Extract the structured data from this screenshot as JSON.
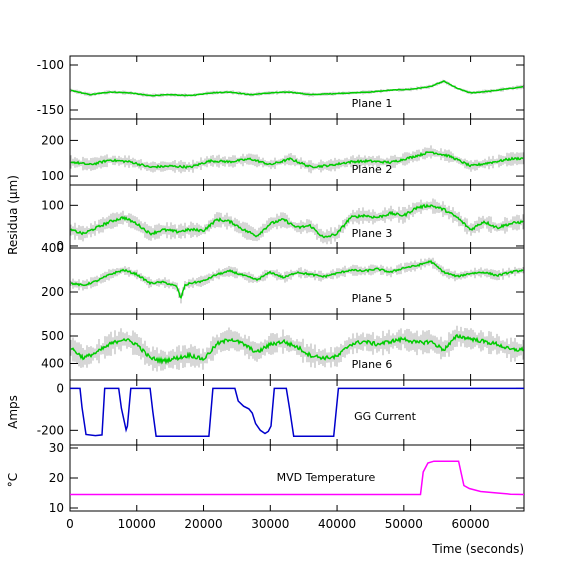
{
  "figure": {
    "ylabel_residua": "Residua (µm)",
    "ylabel_amps": "Amps",
    "ylabel_temp": "°C",
    "xlabel": "Time (seconds)"
  },
  "chart_data": [
    {
      "type": "line",
      "label": "Plane 1",
      "color": "#00cc00",
      "xlim": [
        0,
        68000
      ],
      "ylim": [
        -160,
        -90
      ],
      "yticks": [
        -100,
        -150
      ],
      "x": [
        0,
        3000,
        6000,
        9000,
        12000,
        15000,
        18000,
        21000,
        24000,
        27000,
        30000,
        33000,
        36000,
        39000,
        42000,
        45000,
        48000,
        51000,
        54000,
        56000,
        58000,
        60000,
        63000,
        66000,
        68000
      ],
      "values": [
        -128,
        -133,
        -130,
        -131,
        -134,
        -133,
        -134,
        -131,
        -130,
        -133,
        -131,
        -130,
        -133,
        -132,
        -131,
        -130,
        -128,
        -127,
        -124,
        -118,
        -126,
        -131,
        -129,
        -126,
        -124
      ]
    },
    {
      "type": "line",
      "label": "Plane 2",
      "color": "#00cc00",
      "xlim": [
        0,
        68000
      ],
      "ylim": [
        75,
        260
      ],
      "yticks": [
        100,
        200
      ],
      "x": [
        0,
        3000,
        6000,
        9000,
        12000,
        15000,
        18000,
        21000,
        24000,
        27000,
        30000,
        33000,
        36000,
        39000,
        42000,
        45000,
        48000,
        51000,
        54000,
        57000,
        60000,
        63000,
        66000,
        68000
      ],
      "values": [
        140,
        132,
        145,
        140,
        125,
        128,
        125,
        143,
        140,
        148,
        132,
        148,
        126,
        130,
        140,
        142,
        138,
        152,
        168,
        155,
        128,
        138,
        148,
        150
      ]
    },
    {
      "type": "line",
      "label": "Plane 3",
      "color": "#00cc00",
      "xlim": [
        0,
        68000
      ],
      "ylim": [
        -5,
        150
      ],
      "yticks": [
        0,
        100
      ],
      "x": [
        0,
        2000,
        4000,
        6000,
        8000,
        10000,
        12000,
        14000,
        16000,
        18000,
        20000,
        22000,
        24000,
        26000,
        28000,
        30000,
        32000,
        34000,
        36000,
        38000,
        40000,
        42000,
        44000,
        46000,
        48000,
        50000,
        52000,
        54000,
        56000,
        58000,
        60000,
        62000,
        64000,
        66000,
        68000
      ],
      "values": [
        40,
        30,
        45,
        60,
        70,
        55,
        30,
        40,
        35,
        40,
        38,
        65,
        60,
        40,
        25,
        55,
        65,
        45,
        50,
        20,
        30,
        70,
        75,
        70,
        80,
        75,
        95,
        100,
        90,
        70,
        40,
        60,
        45,
        55,
        60
      ]
    },
    {
      "type": "line",
      "label": "Plane 5",
      "color": "#00cc00",
      "xlim": [
        0,
        68000
      ],
      "ylim": [
        100,
        400
      ],
      "yticks": [
        200,
        400
      ],
      "x": [
        0,
        2000,
        4000,
        6000,
        8000,
        10000,
        12000,
        14000,
        16000,
        16600,
        17200,
        18000,
        20000,
        22000,
        24000,
        26000,
        28000,
        30000,
        32000,
        34000,
        36000,
        38000,
        40000,
        42000,
        44000,
        46000,
        48000,
        50000,
        52000,
        54000,
        56000,
        58000,
        60000,
        62000,
        64000,
        66000,
        68000
      ],
      "values": [
        240,
        230,
        250,
        280,
        300,
        280,
        240,
        245,
        225,
        170,
        230,
        240,
        250,
        280,
        295,
        275,
        255,
        290,
        265,
        290,
        280,
        270,
        285,
        300,
        295,
        305,
        290,
        310,
        320,
        340,
        290,
        270,
        285,
        290,
        275,
        290,
        300
      ]
    },
    {
      "type": "line",
      "label": "Plane 6",
      "color": "#00cc00",
      "xlim": [
        0,
        68000
      ],
      "ylim": [
        340,
        580
      ],
      "yticks": [
        400,
        500
      ],
      "x": [
        0,
        2000,
        4000,
        6000,
        8000,
        10000,
        12000,
        14000,
        16000,
        18000,
        20000,
        22000,
        24000,
        26000,
        28000,
        30000,
        32000,
        34000,
        36000,
        38000,
        40000,
        42000,
        44000,
        46000,
        48000,
        50000,
        52000,
        54000,
        56000,
        58000,
        60000,
        62000,
        64000,
        66000,
        68000
      ],
      "values": [
        460,
        420,
        440,
        470,
        490,
        470,
        420,
        410,
        420,
        430,
        415,
        470,
        490,
        470,
        440,
        470,
        480,
        460,
        430,
        420,
        425,
        470,
        480,
        470,
        480,
        490,
        475,
        480,
        450,
        500,
        490,
        480,
        470,
        450,
        450
      ]
    },
    {
      "type": "line",
      "label": "GG Current",
      "color": "#0000cc",
      "xlim": [
        0,
        68000
      ],
      "ylim": [
        -270,
        40
      ],
      "yticks": [
        0,
        -200
      ],
      "x": [
        0,
        1500,
        1800,
        2400,
        3800,
        4800,
        5200,
        7300,
        7700,
        8400,
        8600,
        9100,
        10000,
        12000,
        12400,
        12900,
        20800,
        21400,
        24700,
        25200,
        26000,
        26800,
        27300,
        27800,
        28500,
        29200,
        29700,
        30100,
        30600,
        32400,
        32900,
        33500,
        39500,
        40200,
        68000
      ],
      "values": [
        0,
        0,
        -90,
        -220,
        -225,
        -222,
        0,
        0,
        -95,
        -198,
        -180,
        0,
        0,
        0,
        -110,
        -228,
        -228,
        0,
        0,
        -60,
        -85,
        -98,
        -118,
        -168,
        -200,
        -215,
        -205,
        -180,
        0,
        0,
        -100,
        -228,
        -228,
        0,
        0
      ]
    },
    {
      "type": "line",
      "label": "MVD Temperature",
      "color": "#ff00ff",
      "xlim": [
        0,
        68000
      ],
      "ylim": [
        9,
        31
      ],
      "yticks": [
        10,
        20,
        30
      ],
      "x": [
        0,
        52500,
        52900,
        53600,
        54500,
        58200,
        59000,
        59800,
        61500,
        64000,
        66000,
        68000
      ],
      "values": [
        14.5,
        14.5,
        22,
        25,
        25.6,
        25.6,
        17.5,
        16.5,
        15.5,
        15,
        14.6,
        14.5
      ]
    }
  ],
  "xaxis": {
    "ticks": [
      0,
      10000,
      20000,
      30000,
      40000,
      50000,
      60000
    ],
    "tick_labels": [
      "0",
      "10000",
      "20000",
      "30000",
      "40000",
      "50000",
      "60000"
    ]
  }
}
